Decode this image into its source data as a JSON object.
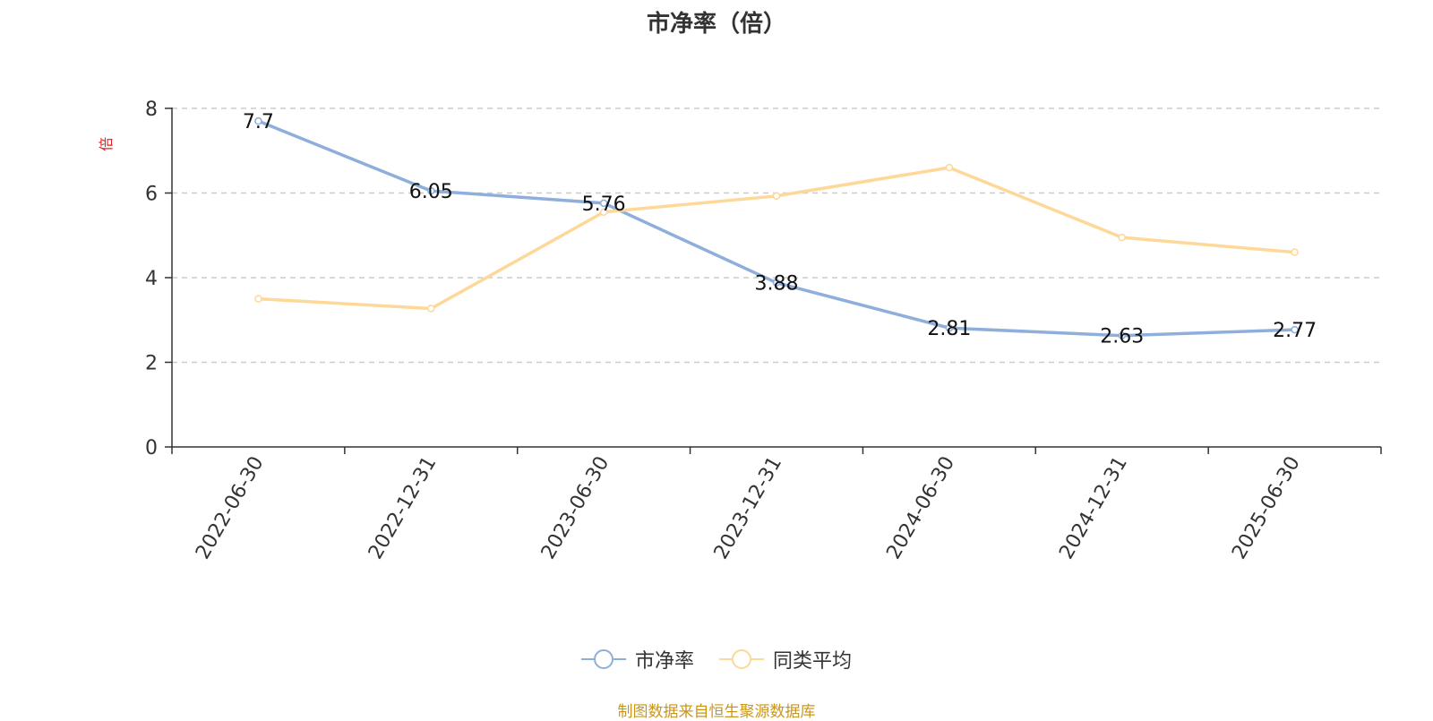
{
  "chart_data": {
    "type": "line",
    "title": "市净率（倍）",
    "ylabel": "倍",
    "categories": [
      "2022-06-30",
      "2022-12-31",
      "2023-06-30",
      "2023-12-31",
      "2024-06-30",
      "2024-12-31",
      "2025-06-30"
    ],
    "ylim": [
      0,
      8
    ],
    "yticks": [
      0,
      2,
      4,
      6,
      8
    ],
    "grid": true,
    "legend_position": "bottom",
    "series": [
      {
        "name": "市净率",
        "values": [
          7.7,
          6.05,
          5.76,
          3.88,
          2.81,
          2.63,
          2.77
        ],
        "color": "#8eaedb",
        "show_labels": true
      },
      {
        "name": "同类平均",
        "values": [
          3.5,
          3.27,
          5.55,
          5.93,
          6.6,
          4.95,
          4.6
        ],
        "color": "#fdd898",
        "show_labels": false
      }
    ]
  },
  "source_note": "制图数据来自恒生聚源数据库"
}
